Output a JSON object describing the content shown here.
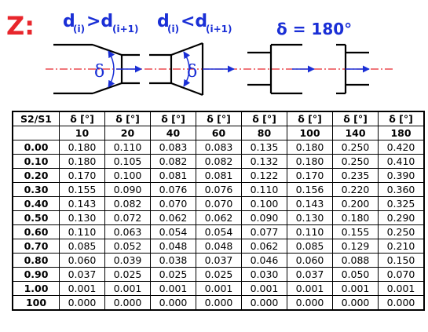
{
  "diagram": {
    "z_label": "Z:",
    "case1_base": "d",
    "case1_sub1": "(i)",
    "case1_op": ">d",
    "case1_sub2": "(i+1)",
    "case2_base": "d",
    "case2_sub1": "(i)",
    "case2_op": "<d",
    "case2_sub2": "(i+1)",
    "delta_symbol": "δ",
    "case3_label": "δ = 180°",
    "colors": {
      "red": "#e8262c",
      "blue": "#1a2fd6",
      "black": "#000000"
    }
  },
  "table": {
    "corner": "S2/S1",
    "delta_header": "δ [°]",
    "angles": [
      "10",
      "20",
      "40",
      "60",
      "80",
      "100",
      "140",
      "180"
    ],
    "rows": [
      {
        "s": "0.00",
        "v": [
          "0.180",
          "0.110",
          "0.083",
          "0.083",
          "0.135",
          "0.180",
          "0.250",
          "0.420"
        ]
      },
      {
        "s": "0.10",
        "v": [
          "0.180",
          "0.105",
          "0.082",
          "0.082",
          "0.132",
          "0.180",
          "0.250",
          "0.410"
        ]
      },
      {
        "s": "0.20",
        "v": [
          "0.170",
          "0.100",
          "0.081",
          "0.081",
          "0.122",
          "0.170",
          "0.235",
          "0.390"
        ]
      },
      {
        "s": "0.30",
        "v": [
          "0.155",
          "0.090",
          "0.076",
          "0.076",
          "0.110",
          "0.156",
          "0.220",
          "0.360"
        ]
      },
      {
        "s": "0.40",
        "v": [
          "0.143",
          "0.082",
          "0.070",
          "0.070",
          "0.100",
          "0.143",
          "0.200",
          "0.325"
        ]
      },
      {
        "s": "0.50",
        "v": [
          "0.130",
          "0.072",
          "0.062",
          "0.062",
          "0.090",
          "0.130",
          "0.180",
          "0.290"
        ]
      },
      {
        "s": "0.60",
        "v": [
          "0.110",
          "0.063",
          "0.054",
          "0.054",
          "0.077",
          "0.110",
          "0.155",
          "0.250"
        ]
      },
      {
        "s": "0.70",
        "v": [
          "0.085",
          "0.052",
          "0.048",
          "0.048",
          "0.062",
          "0.085",
          "0.129",
          "0.210"
        ]
      },
      {
        "s": "0.80",
        "v": [
          "0.060",
          "0.039",
          "0.038",
          "0.037",
          "0.046",
          "0.060",
          "0.088",
          "0.150"
        ]
      },
      {
        "s": "0.90",
        "v": [
          "0.037",
          "0.025",
          "0.025",
          "0.025",
          "0.030",
          "0.037",
          "0.050",
          "0.070"
        ]
      },
      {
        "s": "1.00",
        "v": [
          "0.001",
          "0.001",
          "0.001",
          "0.001",
          "0.001",
          "0.001",
          "0.001",
          "0.001"
        ]
      },
      {
        "s": "100",
        "v": [
          "0.000",
          "0.000",
          "0.000",
          "0.000",
          "0.000",
          "0.000",
          "0.000",
          "0.000"
        ]
      }
    ]
  }
}
